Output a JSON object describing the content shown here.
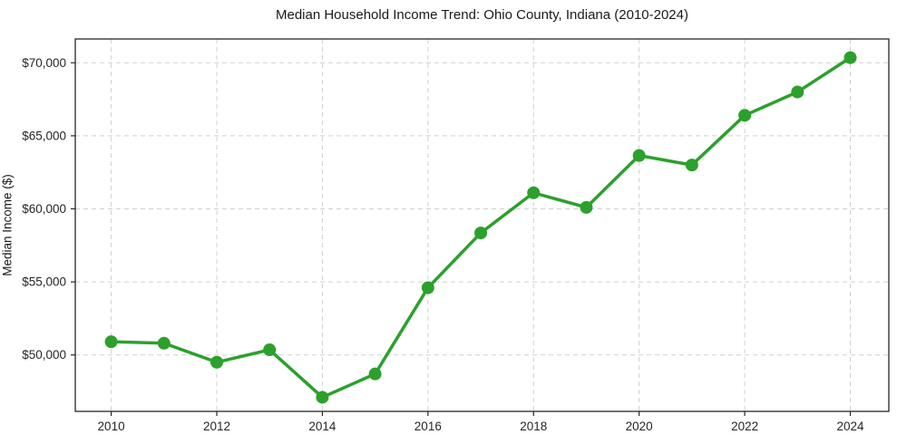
{
  "figure": {
    "title": "Median Household Income Trend: Ohio County, Indiana (2010-2024)",
    "ylabel": "Median Income ($)"
  },
  "colors": {
    "line": "#2ca02c",
    "marker": "#2ca02c",
    "grid": "#d0d0d0",
    "spine": "#262626",
    "tick_text": "#262626",
    "background": "#ffffff"
  },
  "chart_data": {
    "type": "line",
    "title": "Median Household Income Trend: Ohio County, Indiana (2010-2024)",
    "xlabel": "",
    "ylabel": "Median Income ($)",
    "x": [
      2010,
      2011,
      2012,
      2013,
      2014,
      2015,
      2016,
      2017,
      2018,
      2019,
      2020,
      2021,
      2022,
      2023,
      2024
    ],
    "values": [
      50900,
      50800,
      49500,
      50350,
      47100,
      48700,
      54600,
      58350,
      61100,
      60100,
      63650,
      63000,
      66400,
      68000,
      70350
    ],
    "series_name": "Median Household Income",
    "x_ticks": [
      2010,
      2012,
      2014,
      2016,
      2018,
      2020,
      2022,
      2024
    ],
    "x_tick_labels": [
      "2010",
      "2012",
      "2014",
      "2016",
      "2018",
      "2020",
      "2022",
      "2024"
    ],
    "y_ticks": [
      50000,
      55000,
      60000,
      65000,
      70000
    ],
    "y_tick_labels": [
      "$50,000",
      "$55,000",
      "$60,000",
      "$65,000",
      "$70,000"
    ],
    "xlim": [
      2009.32,
      2024.73
    ],
    "ylim": [
      46135,
      71630
    ],
    "grid": true,
    "grid_style": "dashed",
    "legend": "none",
    "marker": "circle",
    "line_width": 3.5,
    "marker_radius": 7
  }
}
